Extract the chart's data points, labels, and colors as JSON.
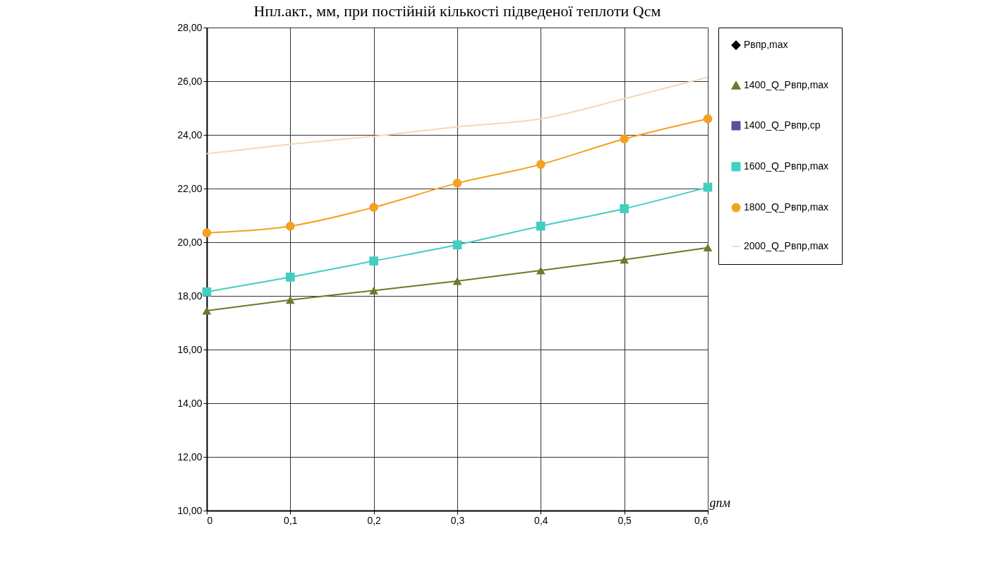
{
  "chart_data": {
    "type": "line",
    "title": "Hпл.акт., мм, при постійній кількості підведеної теплоти Qсм",
    "xlabel": "gпм",
    "x": [
      0,
      0.1,
      0.2,
      0.3,
      0.4,
      0.5,
      0.6
    ],
    "series": [
      {
        "name": "Рвпр,max",
        "color": "#000000",
        "marker": "diamond",
        "values": [
          null,
          null,
          null,
          null,
          null,
          null,
          null
        ]
      },
      {
        "name": "1400_Q_Рвпр,max",
        "color": "#6b7a2b",
        "marker": "triangle",
        "values": [
          17.45,
          17.85,
          18.2,
          18.55,
          18.95,
          19.35,
          19.8
        ]
      },
      {
        "name": "1400_Q_Рвпр,ср",
        "color": "#5a4fa0",
        "marker": "square",
        "values": [
          null,
          null,
          null,
          null,
          null,
          null,
          null
        ]
      },
      {
        "name": "1600_Q_Рвпр,max",
        "color": "#40cfc0",
        "marker": "square",
        "values": [
          18.15,
          18.7,
          19.3,
          19.9,
          20.6,
          21.25,
          22.05
        ]
      },
      {
        "name": "1800_Q_Рвпр,max",
        "color": "#f5a020",
        "marker": "circle",
        "values": [
          20.35,
          20.6,
          21.3,
          22.2,
          22.9,
          23.85,
          24.6
        ]
      },
      {
        "name": "2000_Q_Рвпр,max",
        "color": "#f2d9b8",
        "marker": "none",
        "values": [
          23.3,
          23.65,
          23.95,
          24.3,
          24.6,
          25.35,
          26.15
        ]
      }
    ],
    "xlim": [
      0,
      0.6
    ],
    "xticks": [
      0,
      {
        "value": 0.1,
        "label": "0,1"
      },
      {
        "value": 0.2,
        "label": "0,2"
      },
      {
        "value": 0.3,
        "label": "0,3"
      },
      {
        "value": 0.4,
        "label": "0,4"
      },
      {
        "value": 0.5,
        "label": "0,5"
      },
      {
        "value": 0.6,
        "label": "0,6"
      }
    ],
    "ylim": [
      10,
      28
    ],
    "yticks": [
      {
        "value": 10,
        "label": "10,00"
      },
      {
        "value": 12,
        "label": "12,00"
      },
      {
        "value": 14,
        "label": "14,00"
      },
      {
        "value": 16,
        "label": "16,00"
      },
      {
        "value": 18,
        "label": "18,00"
      },
      {
        "value": 20,
        "label": "20,00"
      },
      {
        "value": 22,
        "label": "22,00"
      },
      {
        "value": 24,
        "label": "24,00"
      },
      {
        "value": 26,
        "label": "26,00"
      },
      {
        "value": 28,
        "label": "28,00"
      }
    ],
    "grid": true,
    "legend": "right",
    "line_style": "solid"
  }
}
